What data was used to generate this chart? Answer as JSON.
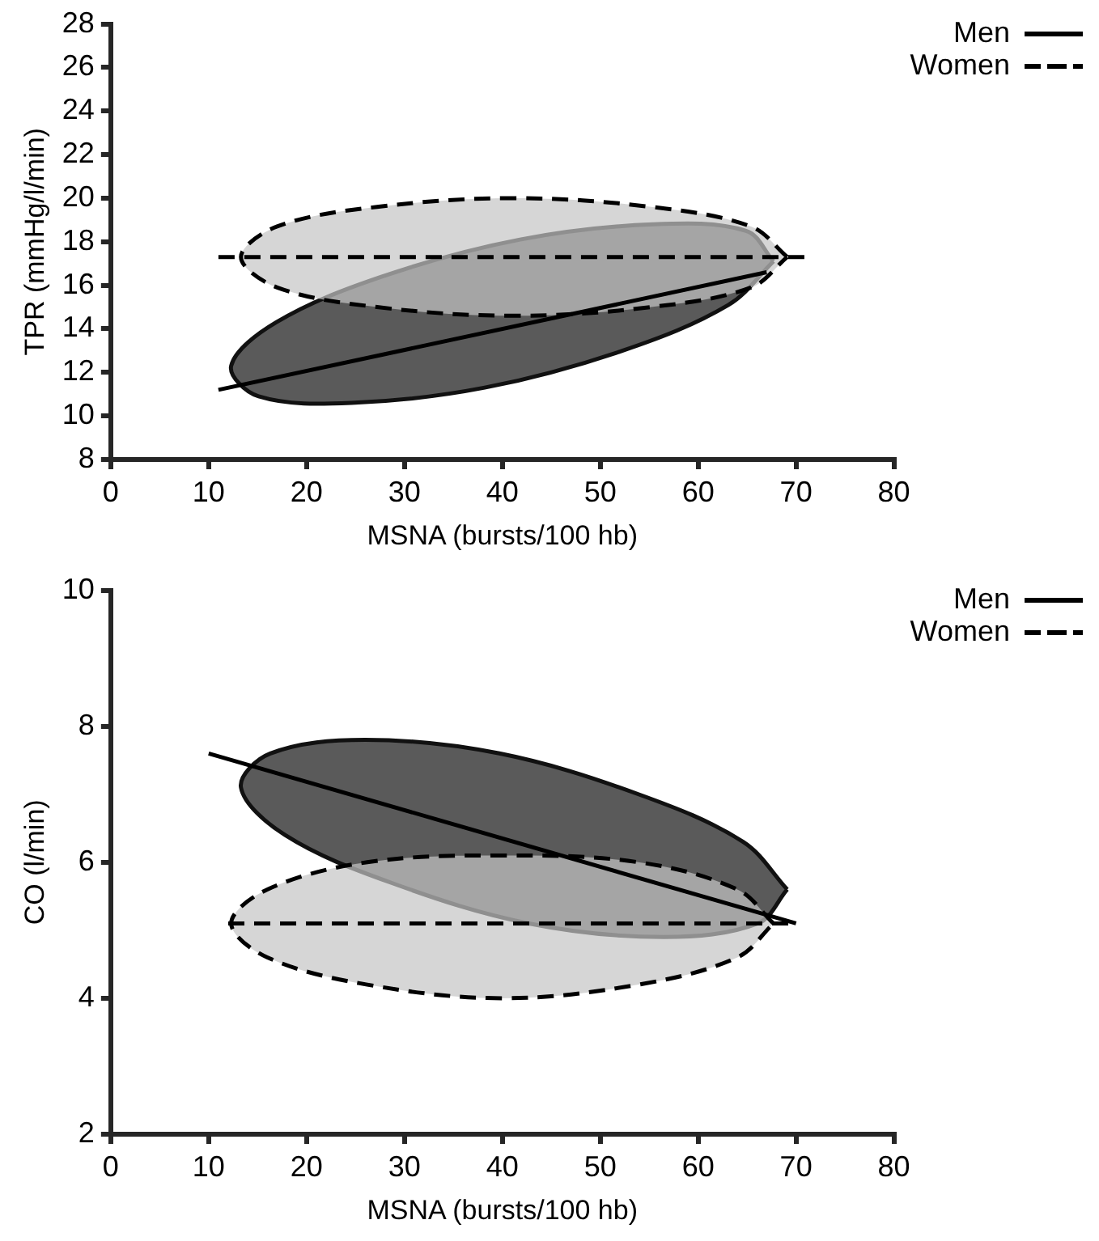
{
  "chart_data": [
    {
      "type": "line",
      "xlabel": "MSNA (bursts/100 hb)",
      "ylabel": "TPR (mmHg/l/min)",
      "xlim": [
        0,
        80
      ],
      "xticks": [
        0,
        10,
        20,
        30,
        40,
        50,
        60,
        70,
        80
      ],
      "ylim": [
        8,
        28
      ],
      "yticks": [
        8,
        10,
        12,
        14,
        16,
        18,
        20,
        22,
        24,
        26,
        28
      ],
      "grid": false,
      "legend": "top right",
      "marker": "none",
      "series": [
        {
          "type": "area",
          "color": "#5a5a5a",
          "line_style": "solid",
          "x": [
            67.7,
            64.9,
            55.4,
            41.8,
            27.7,
            16.9,
            12.3,
            15.1,
            24.6,
            38.2,
            52.3,
            63.1,
            67.7
          ],
          "values": [
            17.1,
            18.5,
            18.8,
            18.1,
            16.4,
            14.3,
            12.3,
            10.9,
            10.6,
            11.3,
            13.0,
            15.1,
            17.1
          ]
        },
        {
          "type": "area",
          "color": "#c4c4c4",
          "line_style": "dashed",
          "x": [
            69.1,
            65.4,
            55.2,
            41.2,
            27.2,
            17.0,
            13.3,
            17.0,
            27.2,
            41.2,
            55.2,
            65.4,
            69.1
          ],
          "values": [
            17.3,
            18.7,
            19.6,
            20.0,
            19.6,
            18.7,
            17.3,
            15.9,
            15.0,
            14.6,
            15.0,
            15.9,
            17.3
          ]
        },
        {
          "type": "line",
          "name": "Men",
          "color": "#000000",
          "line_style": "solid",
          "x": [
            11,
            67
          ],
          "values": [
            11.2,
            16.6
          ]
        },
        {
          "type": "line",
          "name": "Women",
          "color": "#000000",
          "line_style": "dashed",
          "x": [
            11,
            71
          ],
          "values": [
            17.3,
            17.3
          ]
        }
      ]
    },
    {
      "type": "line",
      "xlabel": "MSNA (bursts/100 hb)",
      "ylabel": "CO (l/min)",
      "xlim": [
        0,
        80
      ],
      "xticks": [
        0,
        10,
        20,
        30,
        40,
        50,
        60,
        70,
        80
      ],
      "ylim": [
        2,
        10
      ],
      "yticks": [
        2,
        4,
        6,
        8,
        10
      ],
      "grid": false,
      "legend": "top right",
      "marker": "none",
      "series": [
        {
          "type": "area",
          "color": "#5a5a5a",
          "line_style": "solid",
          "x": [
            69.1,
            64.6,
            53.9,
            39.7,
            26.0,
            16.3,
            13.3,
            17.8,
            28.6,
            42.7,
            56.5,
            66.1,
            69.1
          ],
          "values": [
            5.6,
            6.3,
            7.0,
            7.6,
            7.8,
            7.6,
            7.1,
            6.4,
            5.7,
            5.1,
            4.9,
            5.1,
            5.6
          ]
        },
        {
          "type": "area",
          "color": "#c4c4c4",
          "line_style": "dashed",
          "x": [
            67.7,
            64.0,
            53.9,
            40.0,
            26.2,
            16.0,
            12.3,
            16.0,
            26.2,
            40.0,
            53.9,
            64.0,
            67.7
          ],
          "values": [
            5.1,
            5.6,
            6.0,
            6.1,
            6.0,
            5.6,
            5.1,
            4.6,
            4.2,
            4.0,
            4.2,
            4.6,
            5.1
          ]
        },
        {
          "type": "line",
          "name": "Men",
          "color": "#000000",
          "line_style": "solid",
          "x": [
            10,
            70
          ],
          "values": [
            7.6,
            5.1
          ]
        },
        {
          "type": "line",
          "name": "Women",
          "color": "#000000",
          "line_style": "dashed",
          "x": [
            12,
            70
          ],
          "values": [
            5.1,
            5.1
          ]
        }
      ]
    }
  ]
}
